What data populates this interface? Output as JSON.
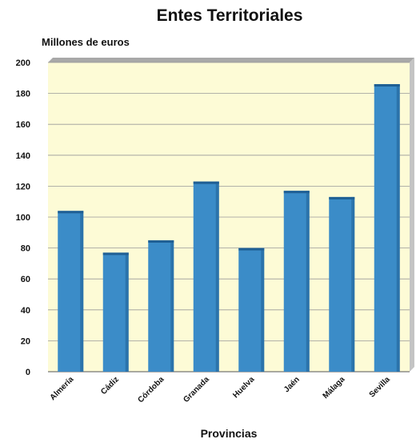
{
  "chart_data": {
    "type": "bar",
    "title": "Entes Territoriales",
    "ylabel": "Millones de euros",
    "xlabel": "Provincias",
    "categories": [
      "Almería",
      "Cádiz",
      "Córdoba",
      "Granada",
      "Huelva",
      "Jaén",
      "Málaga",
      "Sevilla"
    ],
    "values": [
      104,
      77,
      85,
      123,
      80,
      117,
      113,
      186
    ],
    "ylim": [
      0,
      200
    ],
    "yticks": [
      0,
      20,
      40,
      60,
      80,
      100,
      120,
      140,
      160,
      180,
      200
    ],
    "grid": true,
    "colors": {
      "bar": "#3b8cc8",
      "bar_top": "#1f5f94",
      "plot_background": "#fdfbd6",
      "gridline": "#9a9a9a",
      "wall_shadow": "#a8a8a8"
    }
  }
}
